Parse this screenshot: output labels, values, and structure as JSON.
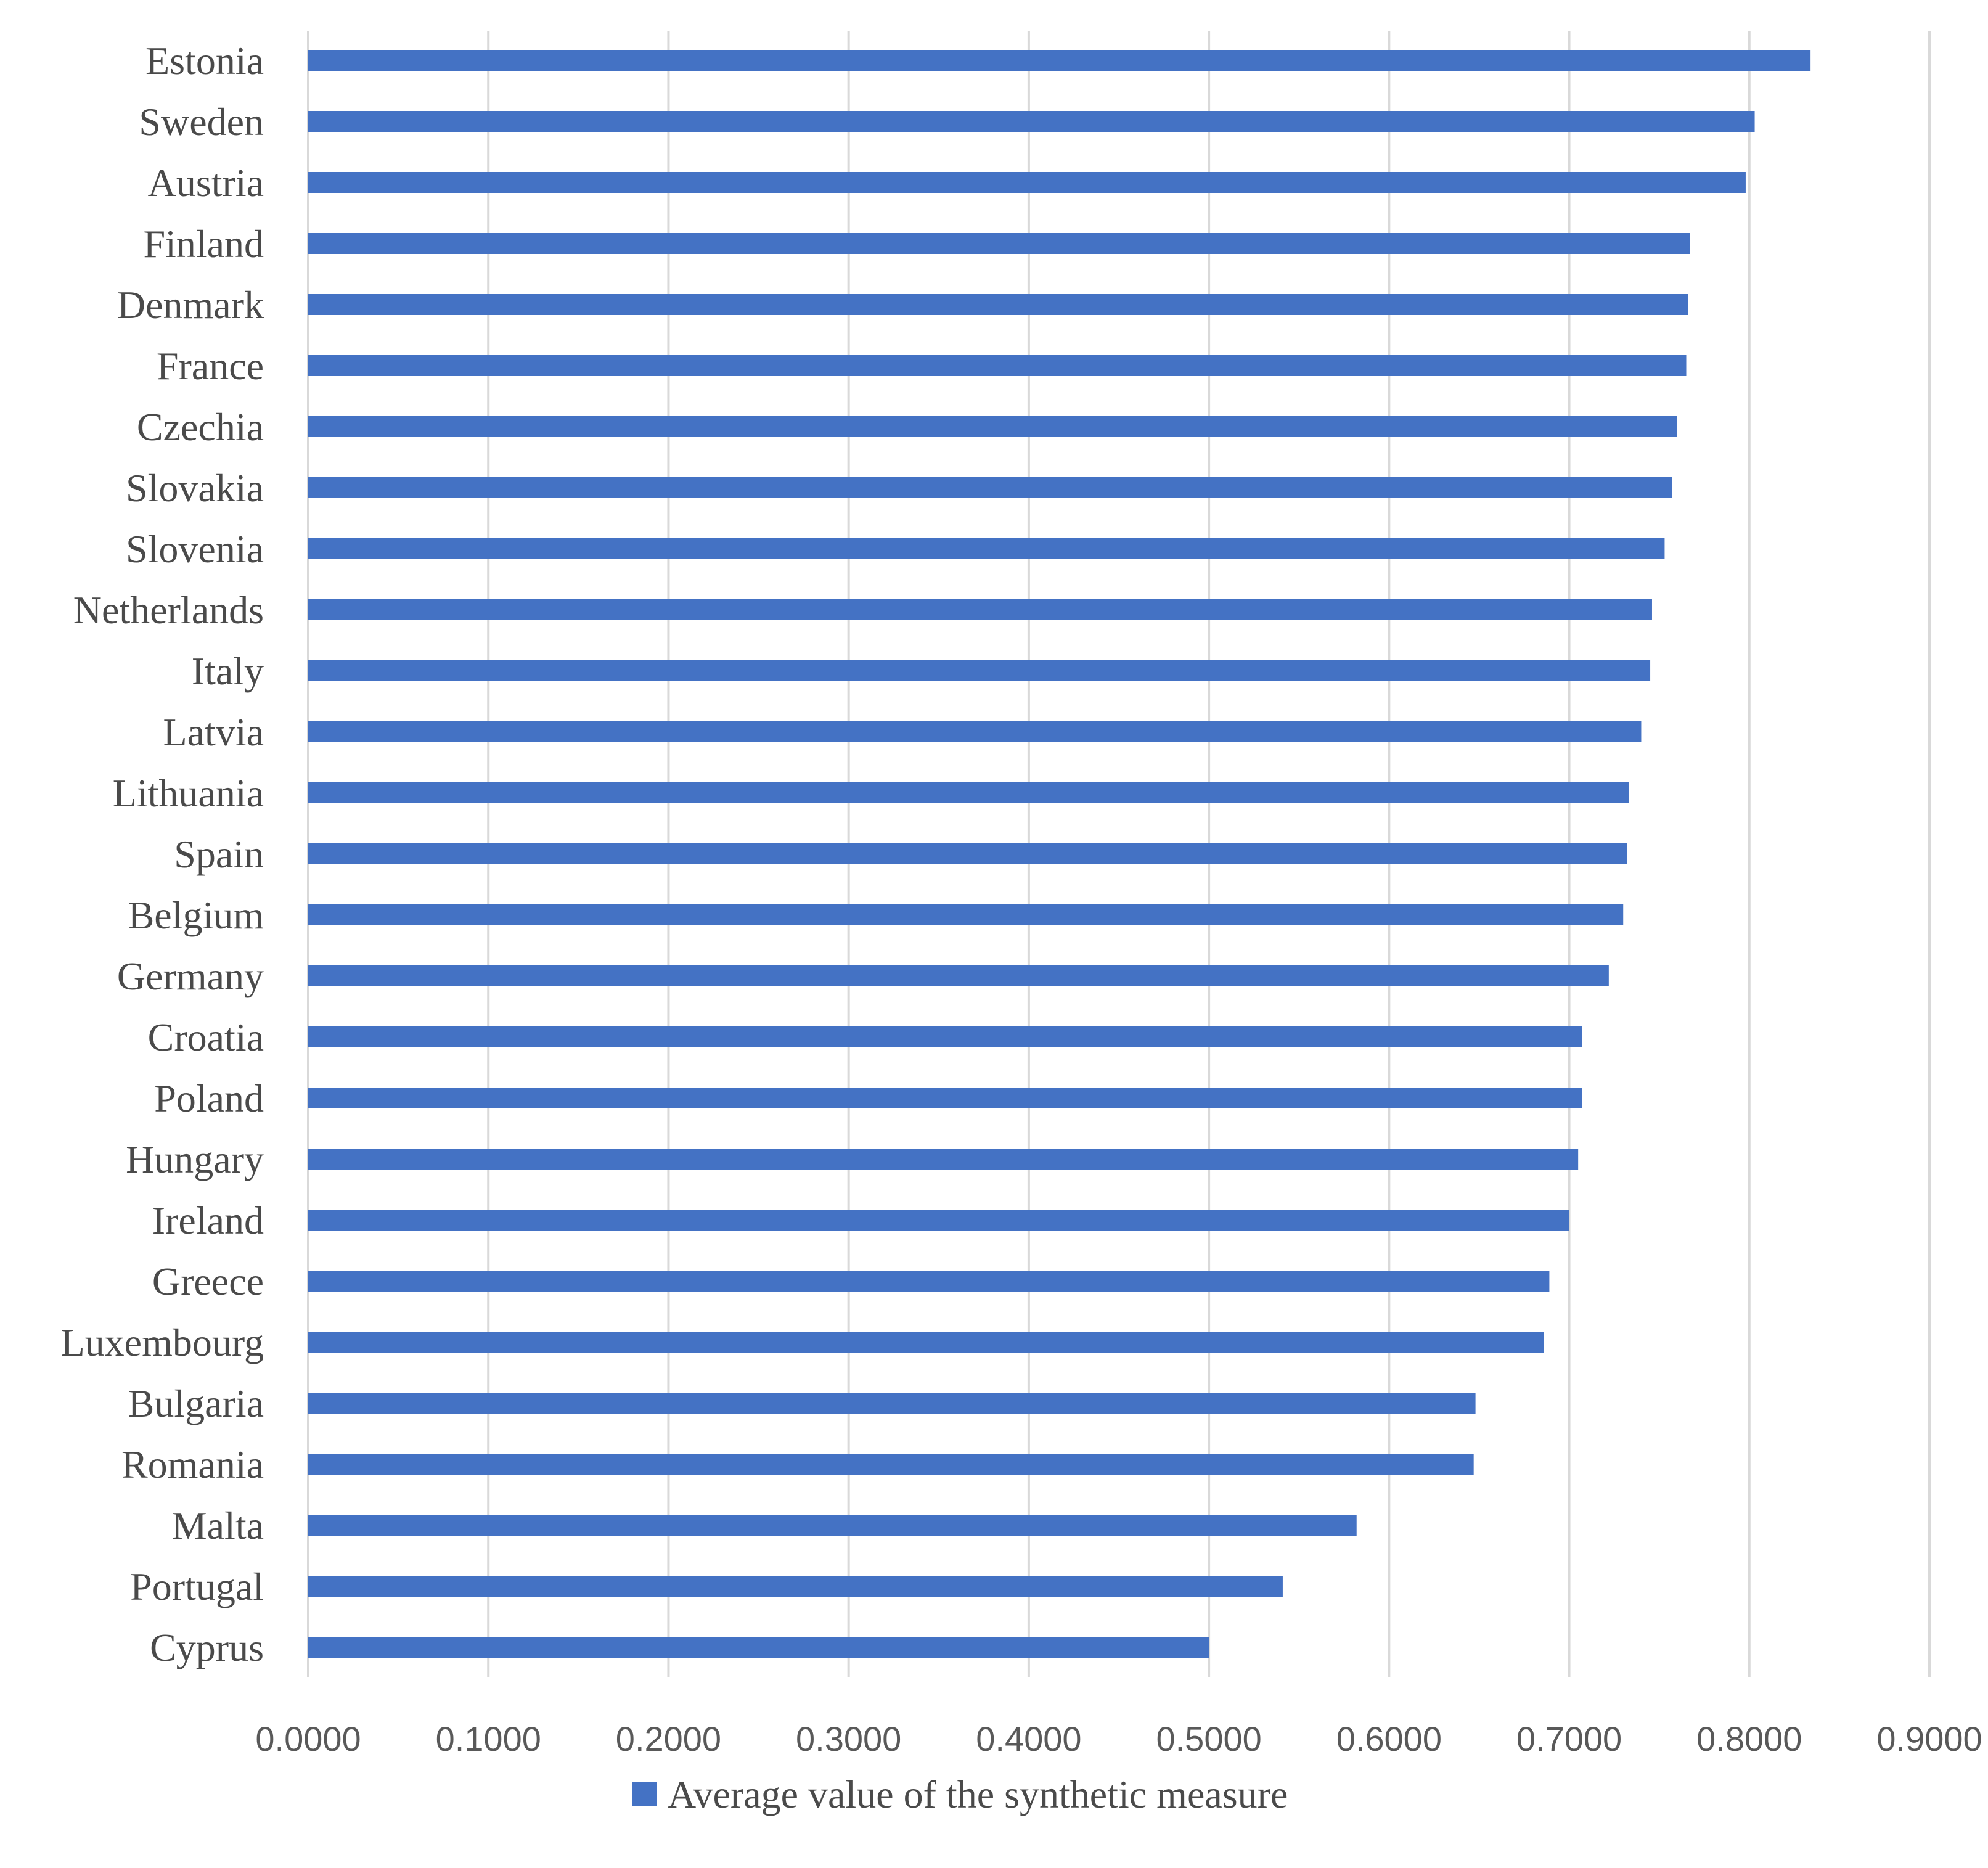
{
  "chart_data": {
    "type": "bar",
    "orientation": "horizontal",
    "categories": [
      "Estonia",
      "Sweden",
      "Austria",
      "Finland",
      "Denmark",
      "France",
      "Czechia",
      "Slovakia",
      "Slovenia",
      "Netherlands",
      "Italy",
      "Latvia",
      "Lithuania",
      "Spain",
      "Belgium",
      "Germany",
      "Croatia",
      "Poland",
      "Hungary",
      "Ireland",
      "Greece",
      "Luxembourg",
      "Bulgaria",
      "Romania",
      "Malta",
      "Portugal",
      "Cyprus"
    ],
    "series": [
      {
        "name": "Average value of the synthetic measure",
        "color": "#4472c4",
        "values": [
          0.834,
          0.803,
          0.798,
          0.767,
          0.766,
          0.765,
          0.76,
          0.757,
          0.753,
          0.746,
          0.745,
          0.74,
          0.733,
          0.732,
          0.73,
          0.722,
          0.707,
          0.707,
          0.705,
          0.7,
          0.689,
          0.686,
          0.648,
          0.647,
          0.582,
          0.541,
          0.5
        ]
      }
    ],
    "xlim": [
      0,
      0.9
    ],
    "xticks": [
      "0.0000",
      "0.1000",
      "0.2000",
      "0.3000",
      "0.4000",
      "0.5000",
      "0.6000",
      "0.7000",
      "0.8000",
      "0.9000"
    ],
    "grid": true,
    "legend_position": "bottom",
    "title": "",
    "xlabel": "",
    "ylabel": ""
  }
}
